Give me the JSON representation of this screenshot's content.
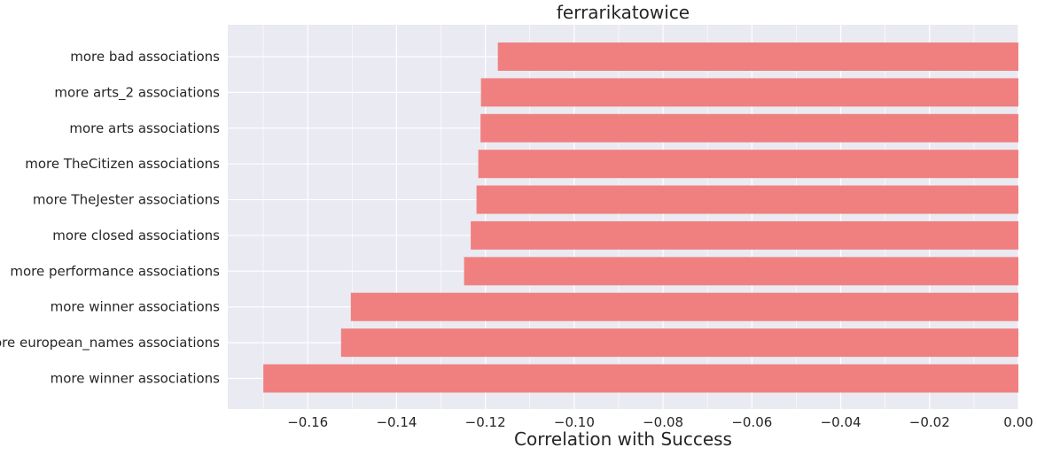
{
  "chart_data": {
    "type": "bar",
    "orientation": "horizontal",
    "title": "ferrarikatowice",
    "xlabel": "Correlation with Success",
    "ylabel": "",
    "categories": [
      "more winner associations",
      "more european_names associations",
      "more winner associations",
      "more performance associations",
      "more closed associations",
      "more TheJester associations",
      "more TheCitizen associations",
      "more arts associations",
      "more arts_2 associations",
      "more bad associations"
    ],
    "values": [
      -0.17,
      -0.1525,
      -0.1503,
      -0.1248,
      -0.1233,
      -0.122,
      -0.1216,
      -0.1211,
      -0.121,
      -0.1172
    ],
    "xlim": [
      -0.178,
      0.0
    ],
    "xticks": [
      -0.16,
      -0.14,
      -0.12,
      -0.1,
      -0.08,
      -0.06,
      -0.04,
      -0.02,
      0.0
    ],
    "xtick_labels": [
      "−0.16",
      "−0.14",
      "−0.12",
      "−0.10",
      "−0.08",
      "−0.06",
      "−0.04",
      "−0.02",
      "0.00"
    ],
    "bar_color": "#f08080",
    "background_color": "#eaeaf2",
    "grid_color": "#ffffff",
    "grid": true
  }
}
